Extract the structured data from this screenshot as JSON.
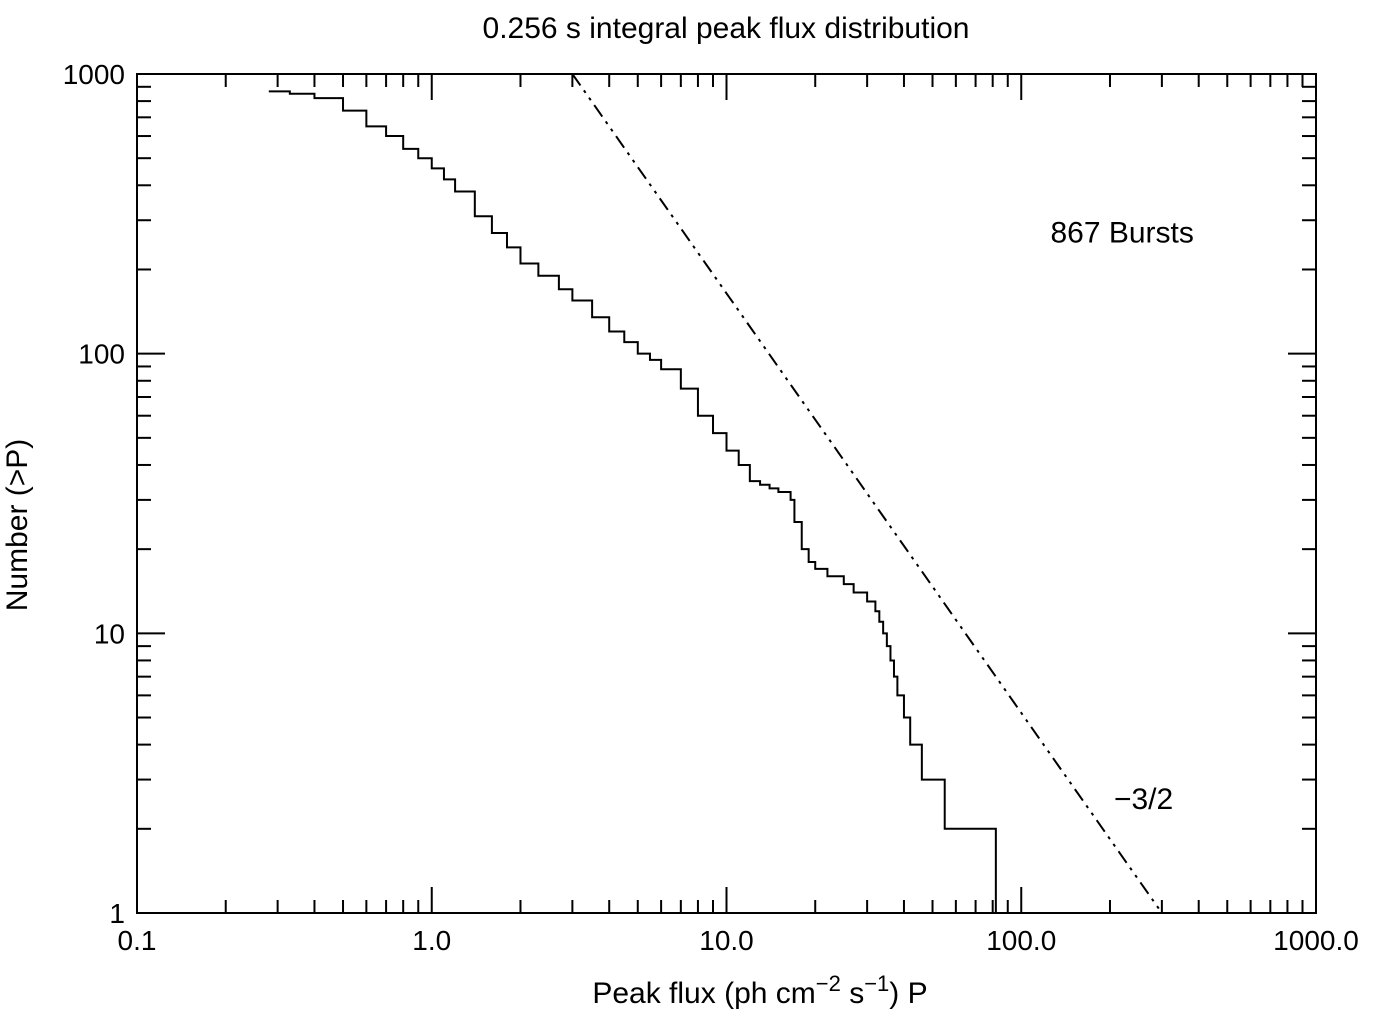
{
  "chart_data": {
    "type": "line",
    "title": "0.256 s integral peak flux distribution",
    "xlabel": {
      "parts": [
        "Peak flux (ph cm",
        "−2",
        " s",
        "−1",
        ") P"
      ]
    },
    "ylabel": "Number (>P)",
    "x_scale": "log",
    "y_scale": "log",
    "xlim": [
      0.1,
      1000
    ],
    "ylim": [
      1,
      1000
    ],
    "x_ticks": [
      0.1,
      1,
      10,
      100,
      1000
    ],
    "x_tick_labels": [
      "0.1",
      "1.0",
      "10.0",
      "100.0",
      "1000.0"
    ],
    "y_ticks": [
      1,
      10,
      100,
      1000
    ],
    "y_tick_labels": [
      "1",
      "10",
      "100",
      "1000"
    ],
    "grid": false,
    "annotations": [
      {
        "text": "867 Bursts",
        "x": 220,
        "y": 250
      },
      {
        "text": "−3/2",
        "x": 260,
        "y": 2.35
      }
    ],
    "series": [
      {
        "style": "step",
        "color": "#000000",
        "x": [
          0.28,
          0.33,
          0.4,
          0.5,
          0.6,
          0.7,
          0.8,
          0.9,
          1.0,
          1.1,
          1.2,
          1.4,
          1.6,
          1.8,
          2.0,
          2.3,
          2.7,
          3.0,
          3.5,
          4.0,
          4.5,
          5.0,
          5.5,
          6.0,
          7.0,
          8.0,
          9.0,
          10.0,
          11.0,
          12.0,
          13.0,
          14.0,
          15.0,
          16.5,
          17.0,
          18.0,
          19.0,
          20.0,
          22.0,
          25.0,
          27.0,
          30.0,
          32.0,
          33.0,
          34.0,
          35.0,
          36.0,
          37.0,
          38.0,
          40.0,
          42.0,
          46.0,
          55.0,
          82.0
        ],
        "y": [
          867,
          850,
          820,
          740,
          650,
          600,
          540,
          500,
          460,
          420,
          380,
          310,
          270,
          240,
          210,
          190,
          170,
          155,
          135,
          120,
          110,
          100,
          95,
          88,
          75,
          60,
          52,
          45,
          40,
          35,
          34,
          33,
          32,
          30,
          25,
          20,
          18,
          17,
          16,
          15,
          14,
          13,
          12,
          11,
          10,
          9,
          8,
          7,
          6,
          5,
          4,
          3,
          2,
          1
        ]
      },
      {
        "name": "−3/2",
        "style": "dash-dot",
        "color": "#000000",
        "x": [
          3.0,
          300.0
        ],
        "y": [
          1000,
          1
        ]
      }
    ]
  }
}
